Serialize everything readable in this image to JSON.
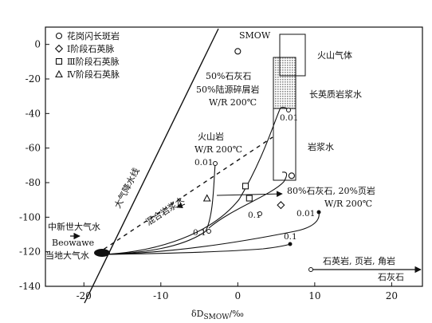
{
  "chart_data": {
    "type": "scatter",
    "x_axis": {
      "label_main": "δD",
      "label_sub": "SMOW",
      "label_unit": "/‰",
      "range": [
        -25,
        24
      ],
      "ticks": [
        -20,
        -10,
        0,
        10,
        20
      ]
    },
    "y_axis": {
      "label": "",
      "range": [
        -140,
        10
      ],
      "ticks": [
        0,
        -20,
        -40,
        -60,
        -80,
        -100,
        -120,
        -140
      ]
    },
    "legend": {
      "placement": "top-left",
      "entries": [
        {
          "symbol": "circle",
          "label": "花岗闪长斑岩"
        },
        {
          "symbol": "diamond",
          "label": "Ⅰ阶段石英脉"
        },
        {
          "symbol": "square",
          "label": "Ⅲ阶段石英脉"
        },
        {
          "symbol": "triangle",
          "label": "Ⅳ阶段石英脉"
        }
      ]
    },
    "points": [
      {
        "symbol": "circle",
        "x": 0,
        "y": -4
      },
      {
        "symbol": "circle",
        "x": 7,
        "y": -76
      },
      {
        "symbol": "diamond",
        "x": 5.6,
        "y": -93
      },
      {
        "symbol": "square",
        "x": 1,
        "y": -82
      },
      {
        "symbol": "square",
        "x": 1.5,
        "y": -89
      },
      {
        "symbol": "triangle",
        "x": -4,
        "y": -89
      }
    ],
    "regions": {
      "volcanic_gas": {
        "label": "火山气体",
        "x": [
          5.3,
          8.5
        ],
        "y": [
          -30,
          0
        ]
      },
      "felsic_magmatic_water": {
        "label": "长英质岩浆水",
        "x": [
          5.3,
          8
        ],
        "y": [
          -50,
          -20
        ]
      },
      "magmatic_water": {
        "label": "岩浆水",
        "x": [
          5.3,
          8
        ],
        "y": [
          -85,
          -20
        ]
      }
    },
    "annotations": {
      "smow": "SMOW",
      "meteoric_line": "大气降水线",
      "mixed": "混合岩浆水",
      "cenozoic": "中新世大气水",
      "beowawe": "Beowawe",
      "local": "当地大气水",
      "mix1_line1": "50%石灰石",
      "mix1_line2": "50%陆源碎屑岩",
      "mix1_line3": "W/R 200℃",
      "volcanic_line1": "火山岩",
      "volcanic_line2": "W/R 200℃",
      "mix2_line1": "80%石灰石, 20%页岩",
      "mix2_line2": "W/R 200℃",
      "sedimentary": "石英岩, 页岩, 角岩",
      "limestone": "石灰石",
      "wr_labels": [
        "0.01",
        "0.01",
        "0.01",
        "0.1",
        "0.1",
        "0.1"
      ]
    },
    "meteoric_water_line": {
      "slope": 8,
      "intercept": 10
    },
    "grid": false
  }
}
